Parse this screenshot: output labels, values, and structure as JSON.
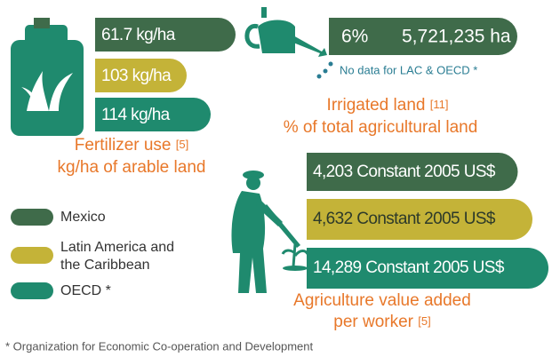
{
  "fertilizer": {
    "values": [
      "61.7 kg/ha",
      "103 kg/ha",
      "114 kg/ha"
    ],
    "title": "Fertilizer use",
    "ref": "[5]",
    "subtitle": "kg/ha of arable land"
  },
  "irrigated": {
    "share": "6%",
    "area": "5,721,235 ha",
    "note": "No data for LAC & OECD *",
    "title": "Irrigated land",
    "ref": "[11]",
    "subtitle": "% of total agricultural land"
  },
  "value_added": {
    "values": [
      "4,203 Constant 2005 US$",
      "4,632 Constant 2005 US$",
      "14,289 Constant 2005 US$"
    ],
    "title": "Agriculture value added",
    "subtitle": "per worker",
    "ref": "[5]"
  },
  "legend": [
    "Mexico",
    "Latin America and",
    "the Caribbean",
    "OECD *"
  ],
  "footnote": "* Organization for Economic Co-operation and Development"
}
